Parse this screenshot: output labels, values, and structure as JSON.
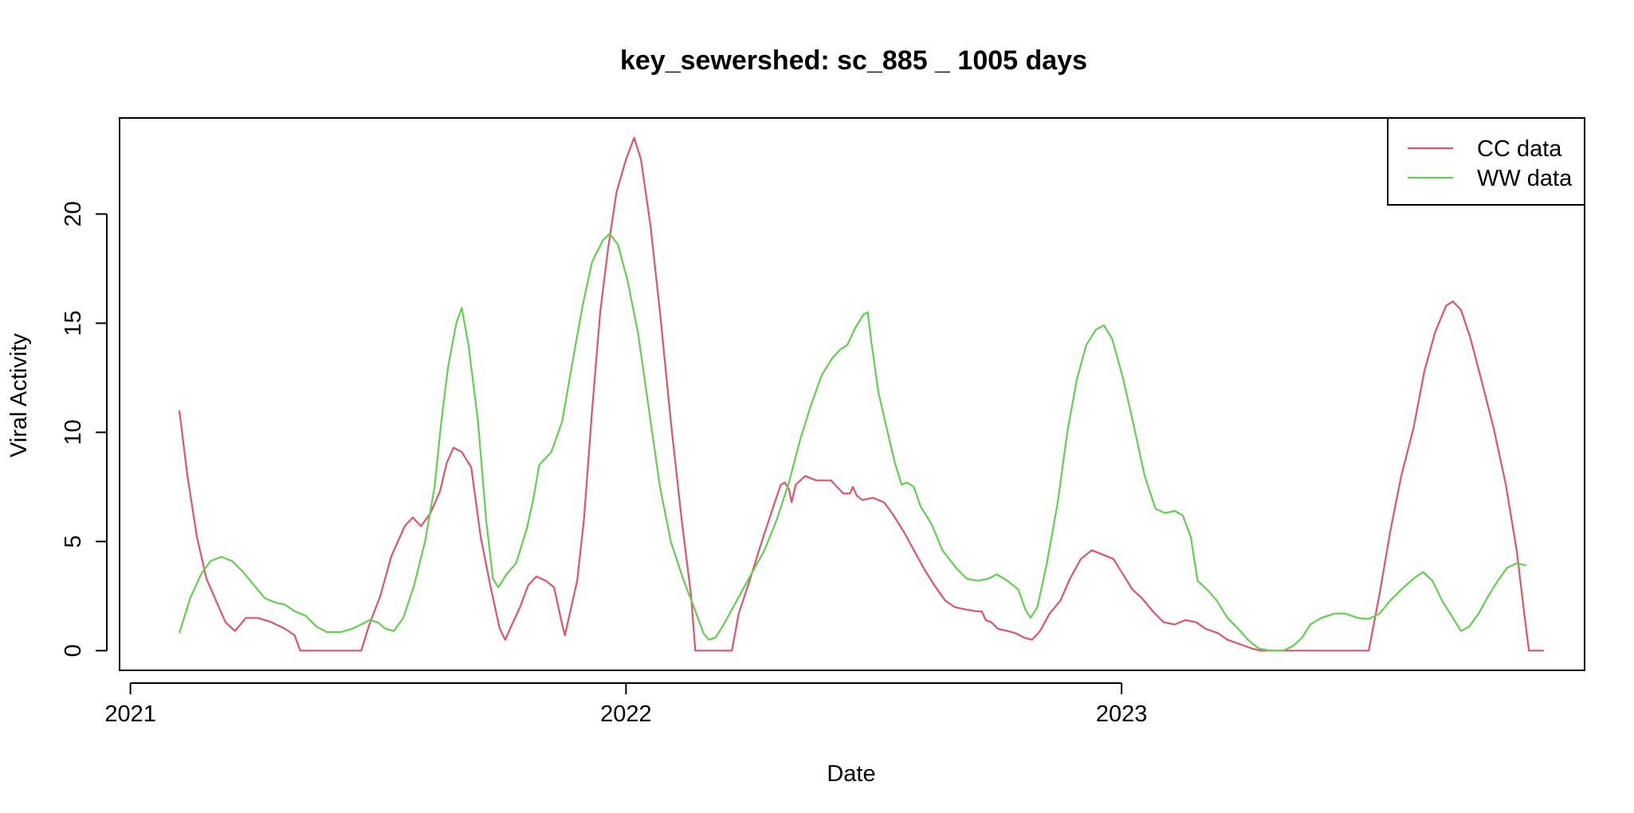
{
  "chart_data": {
    "type": "line",
    "title": "key_sewershed:  sc_885 _ 1005  days",
    "xlabel": "Date",
    "ylabel": "Viral Activity",
    "x_is_date": true,
    "xlim": [
      "2020-12-24",
      "2023-12-08"
    ],
    "ylim": [
      -0.9,
      24.4
    ],
    "x_ticks": [
      {
        "date": "2021-01-01",
        "label": "2021"
      },
      {
        "date": "2022-01-01",
        "label": "2022"
      },
      {
        "date": "2023-01-01",
        "label": "2023"
      }
    ],
    "y_ticks": [
      {
        "value": 0,
        "label": "0"
      },
      {
        "value": 5,
        "label": "5"
      },
      {
        "value": 10,
        "label": "10"
      },
      {
        "value": 15,
        "label": "15"
      },
      {
        "value": 20,
        "label": "20"
      }
    ],
    "grid": false,
    "legend_position": "top-right",
    "series": [
      {
        "name": "CC data",
        "color": "#DF536B",
        "points": [
          [
            "2021-02-06",
            11.0
          ],
          [
            "2021-02-12",
            8.0
          ],
          [
            "2021-02-19",
            5.2
          ],
          [
            "2021-02-26",
            3.3
          ],
          [
            "2021-03-05",
            2.3
          ],
          [
            "2021-03-12",
            1.3
          ],
          [
            "2021-03-19",
            0.9
          ],
          [
            "2021-03-27",
            1.5
          ],
          [
            "2021-04-05",
            1.5
          ],
          [
            "2021-04-15",
            1.3
          ],
          [
            "2021-04-25",
            1.0
          ],
          [
            "2021-05-02",
            0.7
          ],
          [
            "2021-05-06",
            0.0
          ],
          [
            "2021-06-20",
            0.0
          ],
          [
            "2021-06-26",
            1.2
          ],
          [
            "2021-07-04",
            2.5
          ],
          [
            "2021-07-12",
            4.3
          ],
          [
            "2021-07-22",
            5.7
          ],
          [
            "2021-07-28",
            6.1
          ],
          [
            "2021-08-03",
            5.7
          ],
          [
            "2021-08-10",
            6.3
          ],
          [
            "2021-08-17",
            7.3
          ],
          [
            "2021-08-22",
            8.6
          ],
          [
            "2021-08-27",
            9.3
          ],
          [
            "2021-09-02",
            9.1
          ],
          [
            "2021-09-09",
            8.4
          ],
          [
            "2021-09-16",
            5.2
          ],
          [
            "2021-09-23",
            3.0
          ],
          [
            "2021-09-30",
            1.0
          ],
          [
            "2021-10-04",
            0.5
          ],
          [
            "2021-10-09",
            1.2
          ],
          [
            "2021-10-15",
            2.0
          ],
          [
            "2021-10-21",
            3.0
          ],
          [
            "2021-10-27",
            3.4
          ],
          [
            "2021-11-03",
            3.2
          ],
          [
            "2021-11-09",
            2.9
          ],
          [
            "2021-11-15",
            1.2
          ],
          [
            "2021-11-17",
            0.7
          ],
          [
            "2021-11-21",
            1.8
          ],
          [
            "2021-11-26",
            3.2
          ],
          [
            "2021-12-01",
            6.0
          ],
          [
            "2021-12-07",
            11.0
          ],
          [
            "2021-12-13",
            15.5
          ],
          [
            "2021-12-19",
            18.5
          ],
          [
            "2021-12-25",
            21.0
          ],
          [
            "2022-01-01",
            22.5
          ],
          [
            "2022-01-07",
            23.5
          ],
          [
            "2022-01-12",
            22.5
          ],
          [
            "2022-01-19",
            19.5
          ],
          [
            "2022-01-26",
            15.5
          ],
          [
            "2022-02-03",
            10.5
          ],
          [
            "2022-02-11",
            6.0
          ],
          [
            "2022-02-18",
            2.5
          ],
          [
            "2022-02-21",
            0.0
          ],
          [
            "2022-03-20",
            0.0
          ],
          [
            "2022-03-25",
            1.7
          ],
          [
            "2022-04-02",
            3.2
          ],
          [
            "2022-04-10",
            4.8
          ],
          [
            "2022-04-19",
            6.5
          ],
          [
            "2022-04-25",
            7.6
          ],
          [
            "2022-04-28",
            7.7
          ],
          [
            "2022-05-01",
            7.4
          ],
          [
            "2022-05-03",
            6.8
          ],
          [
            "2022-05-06",
            7.6
          ],
          [
            "2022-05-13",
            8.0
          ],
          [
            "2022-05-21",
            7.8
          ],
          [
            "2022-06-01",
            7.8
          ],
          [
            "2022-06-10",
            7.2
          ],
          [
            "2022-06-15",
            7.2
          ],
          [
            "2022-06-17",
            7.5
          ],
          [
            "2022-06-20",
            7.1
          ],
          [
            "2022-06-24",
            6.9
          ],
          [
            "2022-07-02",
            7.0
          ],
          [
            "2022-07-10",
            6.8
          ],
          [
            "2022-07-17",
            6.2
          ],
          [
            "2022-07-25",
            5.4
          ],
          [
            "2022-08-01",
            4.6
          ],
          [
            "2022-08-09",
            3.7
          ],
          [
            "2022-08-16",
            3.0
          ],
          [
            "2022-08-24",
            2.3
          ],
          [
            "2022-08-31",
            2.0
          ],
          [
            "2022-09-07",
            1.9
          ],
          [
            "2022-09-16",
            1.8
          ],
          [
            "2022-09-20",
            1.8
          ],
          [
            "2022-09-23",
            1.4
          ],
          [
            "2022-09-27",
            1.3
          ],
          [
            "2022-10-02",
            1.0
          ],
          [
            "2022-10-09",
            0.9
          ],
          [
            "2022-10-15",
            0.8
          ],
          [
            "2022-10-21",
            0.6
          ],
          [
            "2022-10-27",
            0.5
          ],
          [
            "2022-11-02",
            0.9
          ],
          [
            "2022-11-09",
            1.7
          ],
          [
            "2022-11-17",
            2.3
          ],
          [
            "2022-11-24",
            3.3
          ],
          [
            "2022-12-02",
            4.2
          ],
          [
            "2022-12-10",
            4.6
          ],
          [
            "2022-12-18",
            4.4
          ],
          [
            "2022-12-26",
            4.2
          ],
          [
            "2023-01-03",
            3.4
          ],
          [
            "2023-01-09",
            2.8
          ],
          [
            "2023-01-16",
            2.4
          ],
          [
            "2023-01-24",
            1.8
          ],
          [
            "2023-02-01",
            1.3
          ],
          [
            "2023-02-09",
            1.2
          ],
          [
            "2023-02-17",
            1.4
          ],
          [
            "2023-02-25",
            1.3
          ],
          [
            "2023-03-04",
            1.0
          ],
          [
            "2023-03-13",
            0.8
          ],
          [
            "2023-03-20",
            0.5
          ],
          [
            "2023-03-29",
            0.3
          ],
          [
            "2023-04-07",
            0.1
          ],
          [
            "2023-04-13",
            0.0
          ],
          [
            "2023-07-02",
            0.0
          ],
          [
            "2023-07-10",
            2.6
          ],
          [
            "2023-07-18",
            5.5
          ],
          [
            "2023-07-26",
            8.0
          ],
          [
            "2023-08-04",
            10.2
          ],
          [
            "2023-08-12",
            12.8
          ],
          [
            "2023-08-20",
            14.6
          ],
          [
            "2023-08-28",
            15.8
          ],
          [
            "2023-09-02",
            16.0
          ],
          [
            "2023-09-08",
            15.6
          ],
          [
            "2023-09-15",
            14.3
          ],
          [
            "2023-09-23",
            12.4
          ],
          [
            "2023-10-02",
            10.2
          ],
          [
            "2023-10-11",
            7.6
          ],
          [
            "2023-10-19",
            4.6
          ],
          [
            "2023-10-25",
            1.5
          ],
          [
            "2023-10-28",
            0.0
          ],
          [
            "2023-11-08",
            0.0
          ]
        ]
      },
      {
        "name": "WW data",
        "color": "#61D04F",
        "points": [
          [
            "2021-02-06",
            0.8
          ],
          [
            "2021-02-14",
            2.4
          ],
          [
            "2021-02-22",
            3.5
          ],
          [
            "2021-03-01",
            4.1
          ],
          [
            "2021-03-09",
            4.3
          ],
          [
            "2021-03-17",
            4.1
          ],
          [
            "2021-03-25",
            3.6
          ],
          [
            "2021-04-02",
            3.0
          ],
          [
            "2021-04-10",
            2.4
          ],
          [
            "2021-04-18",
            2.2
          ],
          [
            "2021-04-25",
            2.1
          ],
          [
            "2021-05-02",
            1.8
          ],
          [
            "2021-05-10",
            1.6
          ],
          [
            "2021-05-18",
            1.1
          ],
          [
            "2021-05-26",
            0.85
          ],
          [
            "2021-06-05",
            0.85
          ],
          [
            "2021-06-13",
            1.0
          ],
          [
            "2021-06-20",
            1.2
          ],
          [
            "2021-06-26",
            1.4
          ],
          [
            "2021-07-02",
            1.3
          ],
          [
            "2021-07-08",
            1.0
          ],
          [
            "2021-07-14",
            0.9
          ],
          [
            "2021-07-21",
            1.5
          ],
          [
            "2021-07-29",
            3.0
          ],
          [
            "2021-08-06",
            5.0
          ],
          [
            "2021-08-13",
            7.5
          ],
          [
            "2021-08-18",
            10.5
          ],
          [
            "2021-08-23",
            13.0
          ],
          [
            "2021-08-29",
            15.0
          ],
          [
            "2021-09-02",
            15.7
          ],
          [
            "2021-09-07",
            14.0
          ],
          [
            "2021-09-14",
            10.5
          ],
          [
            "2021-09-20",
            6.0
          ],
          [
            "2021-09-25",
            3.3
          ],
          [
            "2021-09-29",
            2.9
          ],
          [
            "2021-10-05",
            3.5
          ],
          [
            "2021-10-12",
            4.0
          ],
          [
            "2021-10-20",
            5.6
          ],
          [
            "2021-10-25",
            7.0
          ],
          [
            "2021-10-29",
            8.5
          ],
          [
            "2021-11-07",
            9.1
          ],
          [
            "2021-11-15",
            10.5
          ],
          [
            "2021-11-22",
            13.0
          ],
          [
            "2021-11-30",
            15.8
          ],
          [
            "2021-12-07",
            17.8
          ],
          [
            "2021-12-15",
            18.8
          ],
          [
            "2021-12-20",
            19.1
          ],
          [
            "2021-12-26",
            18.6
          ],
          [
            "2022-01-02",
            17.0
          ],
          [
            "2022-01-10",
            14.5
          ],
          [
            "2022-01-18",
            11.0
          ],
          [
            "2022-01-26",
            7.5
          ],
          [
            "2022-02-03",
            5.0
          ],
          [
            "2022-02-12",
            3.3
          ],
          [
            "2022-02-20",
            2.0
          ],
          [
            "2022-02-27",
            0.8
          ],
          [
            "2022-03-03",
            0.5
          ],
          [
            "2022-03-08",
            0.6
          ],
          [
            "2022-03-14",
            1.2
          ],
          [
            "2022-03-21",
            2.0
          ],
          [
            "2022-03-28",
            2.8
          ],
          [
            "2022-04-05",
            3.7
          ],
          [
            "2022-04-13",
            4.6
          ],
          [
            "2022-04-22",
            6.0
          ],
          [
            "2022-05-01",
            7.7
          ],
          [
            "2022-05-09",
            9.6
          ],
          [
            "2022-05-17",
            11.2
          ],
          [
            "2022-05-25",
            12.6
          ],
          [
            "2022-06-02",
            13.4
          ],
          [
            "2022-06-08",
            13.8
          ],
          [
            "2022-06-13",
            14.0
          ],
          [
            "2022-06-19",
            14.8
          ],
          [
            "2022-06-25",
            15.4
          ],
          [
            "2022-06-28",
            15.5
          ],
          [
            "2022-07-01",
            14.0
          ],
          [
            "2022-07-06",
            11.8
          ],
          [
            "2022-07-12",
            10.2
          ],
          [
            "2022-07-18",
            8.6
          ],
          [
            "2022-07-23",
            7.6
          ],
          [
            "2022-07-27",
            7.7
          ],
          [
            "2022-08-01",
            7.5
          ],
          [
            "2022-08-06",
            6.6
          ],
          [
            "2022-08-14",
            5.8
          ],
          [
            "2022-08-22",
            4.6
          ],
          [
            "2022-09-01",
            3.8
          ],
          [
            "2022-09-09",
            3.3
          ],
          [
            "2022-09-17",
            3.2
          ],
          [
            "2022-09-25",
            3.3
          ],
          [
            "2022-10-01",
            3.5
          ],
          [
            "2022-10-09",
            3.2
          ],
          [
            "2022-10-17",
            2.8
          ],
          [
            "2022-10-22",
            1.9
          ],
          [
            "2022-10-26",
            1.5
          ],
          [
            "2022-10-31",
            2.0
          ],
          [
            "2022-11-07",
            4.0
          ],
          [
            "2022-11-15",
            6.8
          ],
          [
            "2022-11-22",
            10.0
          ],
          [
            "2022-11-29",
            12.4
          ],
          [
            "2022-12-06",
            14.0
          ],
          [
            "2022-12-13",
            14.7
          ],
          [
            "2022-12-19",
            14.9
          ],
          [
            "2022-12-25",
            14.3
          ],
          [
            "2023-01-02",
            12.5
          ],
          [
            "2023-01-10",
            10.3
          ],
          [
            "2023-01-18",
            8.0
          ],
          [
            "2023-01-26",
            6.5
          ],
          [
            "2023-02-02",
            6.3
          ],
          [
            "2023-02-09",
            6.4
          ],
          [
            "2023-02-15",
            6.2
          ],
          [
            "2023-02-21",
            5.2
          ],
          [
            "2023-02-26",
            3.2
          ],
          [
            "2023-03-05",
            2.8
          ],
          [
            "2023-03-12",
            2.3
          ],
          [
            "2023-03-20",
            1.5
          ],
          [
            "2023-03-28",
            1.0
          ],
          [
            "2023-04-04",
            0.5
          ],
          [
            "2023-04-12",
            0.1
          ],
          [
            "2023-04-20",
            0.0
          ],
          [
            "2023-04-30",
            0.0
          ],
          [
            "2023-05-07",
            0.2
          ],
          [
            "2023-05-14",
            0.6
          ],
          [
            "2023-05-20",
            1.2
          ],
          [
            "2023-05-28",
            1.5
          ],
          [
            "2023-06-07",
            1.7
          ],
          [
            "2023-06-15",
            1.7
          ],
          [
            "2023-06-24",
            1.5
          ],
          [
            "2023-07-02",
            1.45
          ],
          [
            "2023-07-10",
            1.7
          ],
          [
            "2023-07-18",
            2.3
          ],
          [
            "2023-07-26",
            2.8
          ],
          [
            "2023-08-04",
            3.3
          ],
          [
            "2023-08-11",
            3.6
          ],
          [
            "2023-08-18",
            3.2
          ],
          [
            "2023-08-25",
            2.3
          ],
          [
            "2023-09-02",
            1.5
          ],
          [
            "2023-09-08",
            0.9
          ],
          [
            "2023-09-14",
            1.1
          ],
          [
            "2023-09-21",
            1.7
          ],
          [
            "2023-09-28",
            2.5
          ],
          [
            "2023-10-05",
            3.2
          ],
          [
            "2023-10-12",
            3.8
          ],
          [
            "2023-10-19",
            4.0
          ],
          [
            "2023-10-26",
            3.9
          ]
        ]
      }
    ]
  }
}
